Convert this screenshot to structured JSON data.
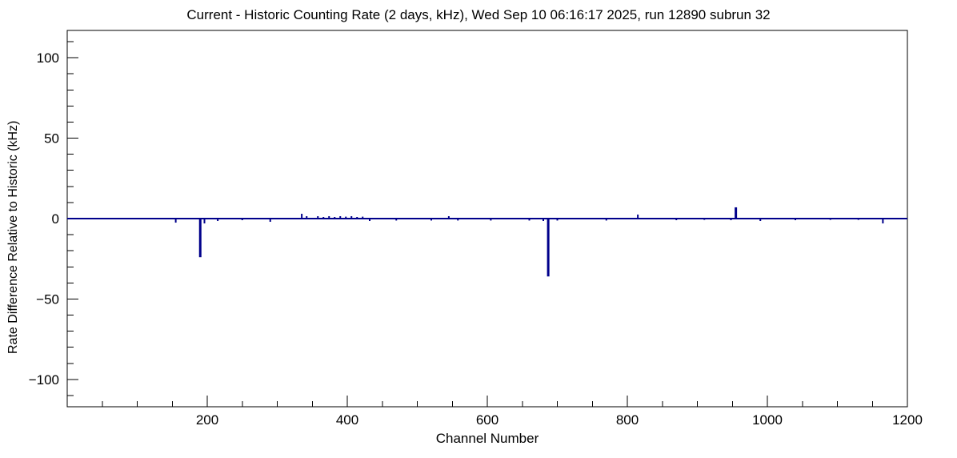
{
  "chart_data": {
    "type": "line",
    "title": "Current - Historic Counting Rate (2 days, kHz), Wed Sep 10 06:16:17 2025, run 12890 subrun 32",
    "xlabel": "Channel Number",
    "ylabel": "Rate Difference Relative to Historic (kHz)",
    "xlim": [
      0,
      1200
    ],
    "ylim": [
      -117,
      117
    ],
    "x_major_ticks": [
      200,
      400,
      600,
      800,
      1000,
      1200
    ],
    "x_minor_step": 50,
    "y_major_ticks": [
      -100,
      -50,
      0,
      50,
      100
    ],
    "y_minor_step": 10,
    "grid": false,
    "legend": "none",
    "baseline_value": 0,
    "series_color": "#00008b",
    "frame_color": "#000000",
    "spikes": [
      [
        155,
        -2.5
      ],
      [
        190,
        -24
      ],
      [
        196,
        -3
      ],
      [
        215,
        -1.5
      ],
      [
        250,
        -1
      ],
      [
        290,
        -2
      ],
      [
        335,
        3
      ],
      [
        342,
        1.5
      ],
      [
        358,
        1.5
      ],
      [
        366,
        1
      ],
      [
        374,
        1.5
      ],
      [
        382,
        1
      ],
      [
        390,
        1.5
      ],
      [
        398,
        1.2
      ],
      [
        406,
        1.5
      ],
      [
        414,
        1
      ],
      [
        422,
        1.2
      ],
      [
        432,
        -1.5
      ],
      [
        470,
        -1.2
      ],
      [
        520,
        -1.2
      ],
      [
        545,
        1.5
      ],
      [
        558,
        -1.2
      ],
      [
        605,
        -1.2
      ],
      [
        660,
        -1.2
      ],
      [
        680,
        -1.5
      ],
      [
        687,
        -36
      ],
      [
        700,
        -1.2
      ],
      [
        770,
        -1.2
      ],
      [
        815,
        2.5
      ],
      [
        870,
        -1
      ],
      [
        910,
        -0.8
      ],
      [
        948,
        -1
      ],
      [
        955,
        7
      ],
      [
        990,
        -1.5
      ],
      [
        1040,
        -1
      ],
      [
        1090,
        -0.8
      ],
      [
        1130,
        -0.8
      ],
      [
        1165,
        -3
      ]
    ]
  }
}
